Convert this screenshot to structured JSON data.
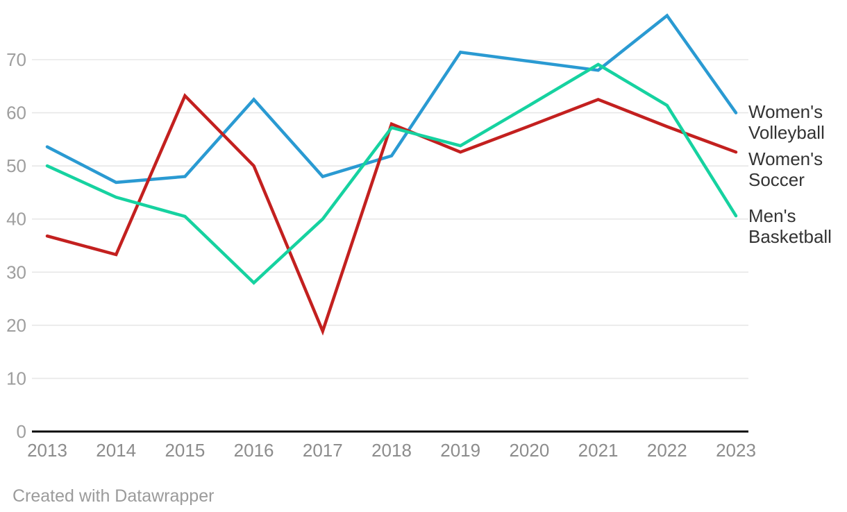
{
  "chart": {
    "footer": "Created with Datawrapper"
  },
  "chart_data": {
    "type": "line",
    "title": "",
    "xlabel": "",
    "ylabel": "",
    "x": [
      2013,
      2014,
      2015,
      2016,
      2017,
      2018,
      2019,
      2020,
      2021,
      2022,
      2023
    ],
    "series": [
      {
        "name": "Women's Volleyball",
        "color": "#2a9ad2",
        "values": [
          53.6,
          46.9,
          48.0,
          62.5,
          48.0,
          51.9,
          71.4,
          69.7,
          68.0,
          78.3,
          60.0
        ]
      },
      {
        "name": "Women's Soccer",
        "color": "#c3201f",
        "values": [
          36.8,
          33.3,
          63.2,
          50.0,
          18.9,
          57.9,
          52.6,
          57.5,
          62.5,
          57.4,
          52.6
        ]
      },
      {
        "name": "Men's Basketball",
        "color": "#16d2a0",
        "values": [
          50.0,
          44.1,
          40.5,
          28.0,
          40.0,
          57.2,
          53.8,
          61.4,
          69.1,
          61.4,
          40.6
        ]
      }
    ],
    "yticks": [
      0,
      10,
      20,
      30,
      40,
      50,
      60,
      70
    ],
    "ylim": [
      0,
      80
    ],
    "grid": true,
    "legend_position": "right-edge-labels"
  }
}
